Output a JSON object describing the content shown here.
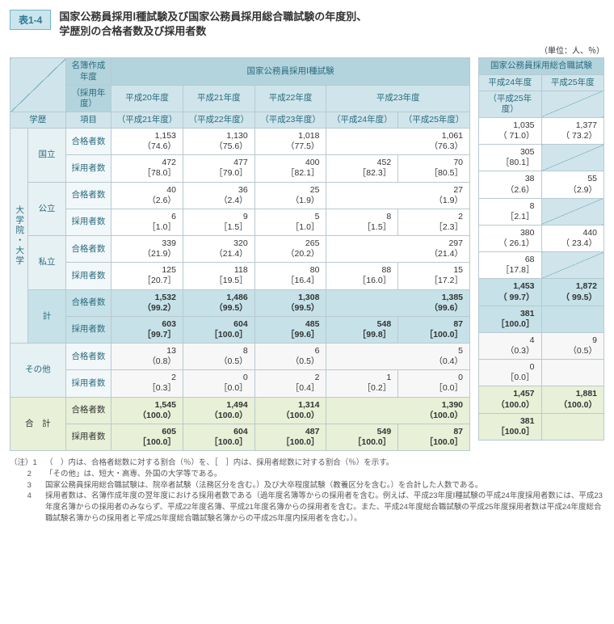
{
  "tag": "表1-4",
  "title_line1": "国家公務員採用Ⅰ種試験及び国家公務員採用総合職試験の年度別、",
  "title_line2": "学歴別の合格者数及び採用者数",
  "unit": "（単位：人、％）",
  "headers": {
    "meibo": "名簿作成年度",
    "saiyo_nendo": "（採用年度）",
    "gakureki": "学歴",
    "koumoku": "項目",
    "exam1": "国家公務員採用Ⅰ種試験",
    "exam2": "国家公務員採用総合職試験",
    "h20": "平成20年度",
    "h20a": "（平成21年度）",
    "h21": "平成21年度",
    "h21a": "（平成22年度）",
    "h22": "平成22年度",
    "h22a": "（平成23年度）",
    "h23": "平成23年度",
    "h23a1": "（平成24年度）",
    "h23a2": "（平成25年度）",
    "h24": "平成24年度",
    "h24a": "（平成25年度）",
    "h25": "平成25年度"
  },
  "rowcat": {
    "daigaku": "大学院・大学",
    "kokuritsu": "国立",
    "kouritsu": "公立",
    "shiritsu": "私立",
    "kei": "計",
    "sonota": "その他",
    "goukei": "合　計",
    "goukakusha": "合格者数",
    "saiyousha": "採用者数"
  },
  "left": {
    "kokuritsu": {
      "g": [
        "1,153\n（74.6）",
        "1,130\n（75.6）",
        "1,018\n（77.5）",
        "1,061\n（76.3）",
        ""
      ],
      "s": [
        "472\n［78.0］",
        "477\n［79.0］",
        "400\n［82.1］",
        "452\n［82.3］",
        "70\n［80.5］"
      ]
    },
    "kouritsu": {
      "g": [
        "40\n（2.6）",
        "36\n（2.4）",
        "25\n（1.9）",
        "27\n（1.9）",
        ""
      ],
      "s": [
        "6\n［1.0］",
        "9\n［1.5］",
        "5\n［1.0］",
        "8\n［1.5］",
        "2\n［2.3］"
      ]
    },
    "shiritsu": {
      "g": [
        "339\n（21.9）",
        "320\n（21.4）",
        "265\n（20.2）",
        "297\n（21.4）",
        ""
      ],
      "s": [
        "125\n［20.7］",
        "118\n［19.5］",
        "80\n［16.4］",
        "88\n［16.0］",
        "15\n［17.2］"
      ]
    },
    "kei": {
      "g": [
        "1,532\n（99.2）",
        "1,486\n（99.5）",
        "1,308\n（99.5）",
        "1,385\n（99.6）",
        ""
      ],
      "s": [
        "603\n［99.7］",
        "604\n［100.0］",
        "485\n［99.6］",
        "548\n［99.8］",
        "87\n［100.0］"
      ]
    },
    "sonota": {
      "g": [
        "13\n（0.8）",
        "8\n（0.5）",
        "6\n（0.5）",
        "5\n（0.4）",
        ""
      ],
      "s": [
        "2\n［0.3］",
        "0\n［0.0］",
        "2\n［0.4］",
        "1\n［0.2］",
        "0\n［0.0］"
      ]
    },
    "goukei": {
      "g": [
        "1,545\n（100.0）",
        "1,494\n（100.0）",
        "1,314\n（100.0）",
        "1,390\n（100.0）",
        ""
      ],
      "s": [
        "605\n［100.0］",
        "604\n［100.0］",
        "487\n［100.0］",
        "549\n［100.0］",
        "87\n［100.0］"
      ]
    }
  },
  "right": {
    "kokuritsu": {
      "g": [
        "1,035\n（ 71.0）",
        "1,377\n（ 73.2）"
      ],
      "s": [
        "305\n［80.1］",
        ""
      ]
    },
    "kouritsu": {
      "g": [
        "38\n（2.6）",
        "55\n（2.9）"
      ],
      "s": [
        "8\n［2.1］",
        ""
      ]
    },
    "shiritsu": {
      "g": [
        "380\n（ 26.1）",
        "440\n（ 23.4）"
      ],
      "s": [
        "68\n［17.8］",
        ""
      ]
    },
    "kei": {
      "g": [
        "1,453\n（ 99.7）",
        "1,872\n（ 99.5）"
      ],
      "s": [
        "381\n［100.0］",
        ""
      ]
    },
    "sonota": {
      "g": [
        "4\n（0.3）",
        "9\n（0.5）"
      ],
      "s": [
        "0\n［0.0］",
        ""
      ]
    },
    "goukei": {
      "g": [
        "1,457\n（100.0）",
        "1,881\n（100.0）"
      ],
      "s": [
        "381\n［100.0］",
        ""
      ]
    }
  },
  "notes": [
    {
      "head": "（注）1　",
      "body": "（　）内は、合格者総数に対する割合（％）を、［　］内は、採用者総数に対する割合（％）を示す。"
    },
    {
      "head": "　　 2　",
      "body": "「その他」は、短大・高専、外国の大学等である。"
    },
    {
      "head": "　　 3　",
      "body": "国家公務員採用総合職試験は、院卒者試験（法務区分を含む。）及び大卒程度試験（教養区分を含む。）を合計した人数である。"
    },
    {
      "head": "　　 4　",
      "body": "採用者数は、名簿作成年度の翌年度における採用者数である（過年度名簿等からの採用者を含む。例えば、平成23年度Ⅰ種試験の平成24年度採用者数には、平成23年度名簿からの採用者のみならず、平成22年度名簿、平成21年度名簿からの採用者を含む。また、平成24年度総合職試験の平成25年度採用者数は平成24年度総合職試験名簿からの採用者と平成25年度総合職試験名簿からの平成25年度内採用者を含む。）。"
    }
  ],
  "style": {
    "hdr_bg": "#cfe5eb",
    "dark_bg": "#b3d4dd",
    "cat_bg": "#e6f1f4",
    "subcat_bg": "#f2f8fa",
    "total_bg": "#c6e2e8",
    "grand_bg": "#e8f0d8",
    "border": "#b8c9d0"
  }
}
